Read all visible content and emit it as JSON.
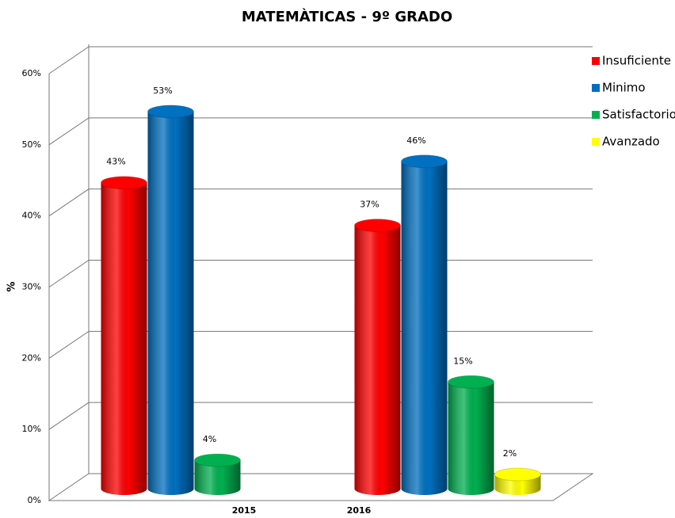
{
  "chart_data": {
    "type": "bar3d",
    "title": "MATEMÀTICAS - 9º GRADO",
    "y_label": "%",
    "categories": [
      "2015",
      "2016"
    ],
    "series": [
      {
        "name": "Insuficiente",
        "color": "#ff0000",
        "values": [
          43,
          37
        ],
        "value_labels": [
          "43%",
          "37%"
        ]
      },
      {
        "name": "Minimo",
        "color": "#0070c0",
        "values": [
          53,
          46
        ],
        "value_labels": [
          "53%",
          "46%"
        ]
      },
      {
        "name": "Satisfactorio",
        "color": "#00b050",
        "values": [
          4,
          15
        ],
        "value_labels": [
          "4%",
          "15%"
        ]
      },
      {
        "name": "Avanzado",
        "color": "#ffff00",
        "values": [
          null,
          2
        ],
        "value_labels": [
          null,
          "2%"
        ]
      }
    ],
    "ylim": [
      0,
      60
    ],
    "yticks": [
      {
        "value": 0,
        "label": "0%"
      },
      {
        "value": 10,
        "label": "10%"
      },
      {
        "value": 20,
        "label": "20%"
      },
      {
        "value": 30,
        "label": "30%"
      },
      {
        "value": 40,
        "label": "40%"
      },
      {
        "value": 50,
        "label": "50%"
      },
      {
        "value": 60,
        "label": "60%"
      }
    ],
    "grid": true,
    "legend": "right"
  }
}
